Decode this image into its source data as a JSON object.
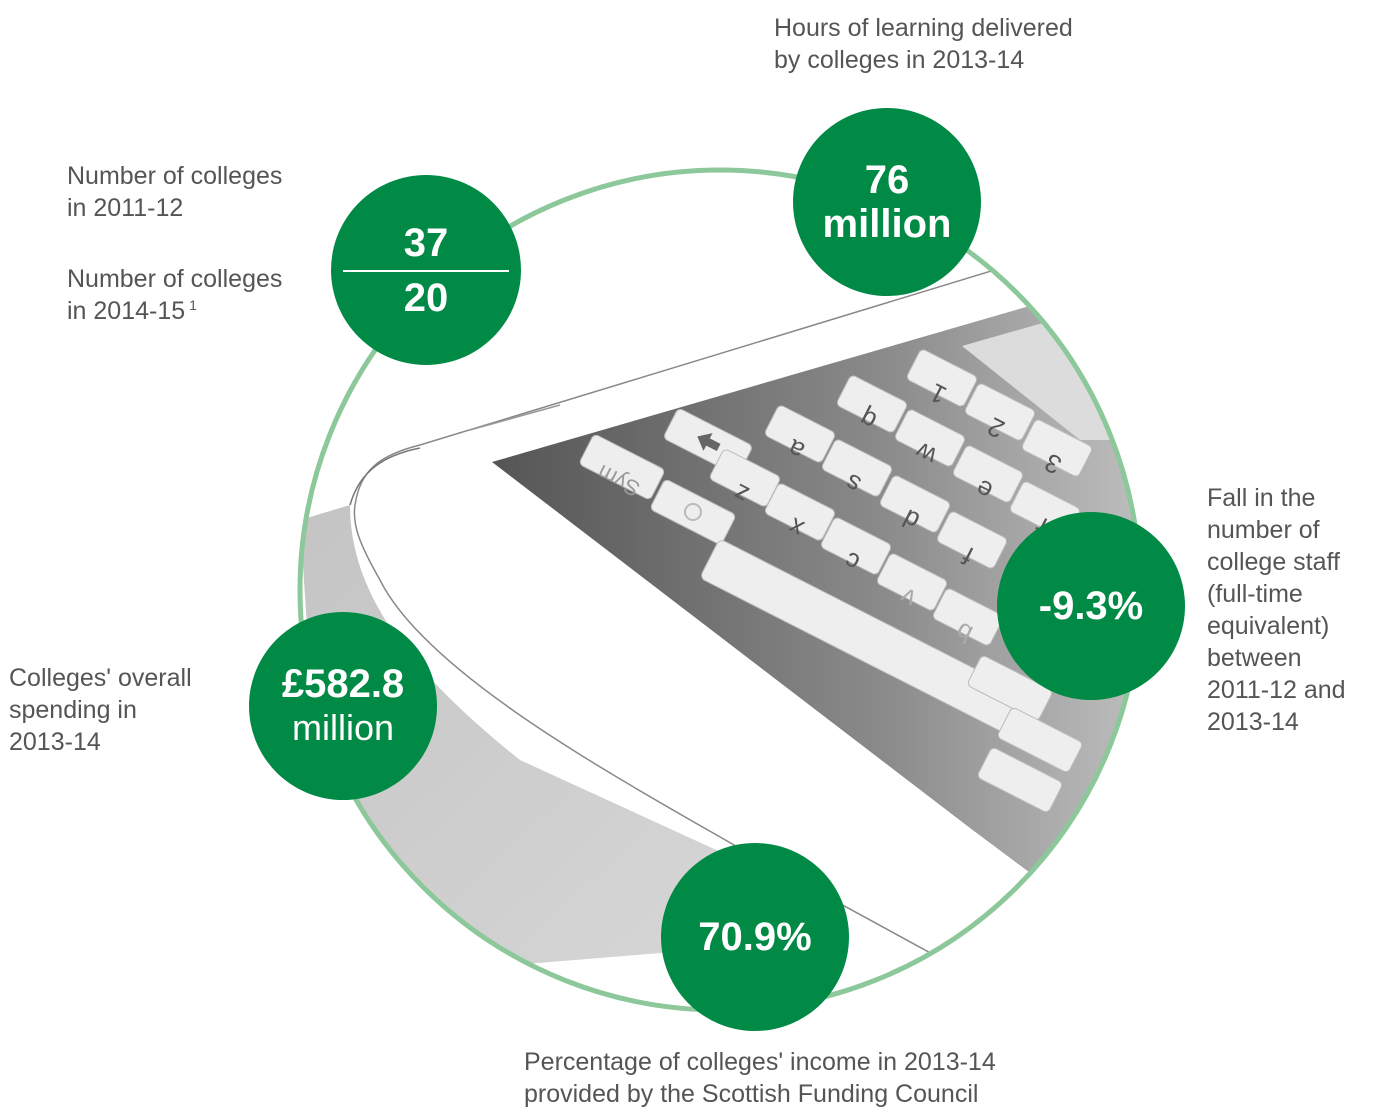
{
  "colors": {
    "accent_green": "#008a45",
    "ring_green": "#8cc89a",
    "text_gray": "#555555"
  },
  "stats": {
    "colleges": {
      "value_top": "37",
      "value_bottom": "20",
      "label_top": [
        "Number of colleges",
        "in 2011-12"
      ],
      "label_bottom": [
        "Number of colleges",
        "in 2014-15"
      ],
      "footnote": "1"
    },
    "hours": {
      "value": [
        "76",
        "million"
      ],
      "label": [
        "Hours of learning delivered",
        "by colleges in 2013-14"
      ]
    },
    "staff": {
      "value": "-9.3%",
      "label": [
        "Fall in the",
        "number of",
        "college staff",
        "(full-time",
        "equivalent)",
        "between",
        "2011-12 and",
        "2013-14"
      ]
    },
    "spending": {
      "value": "£582.8",
      "unit": "million",
      "label": [
        "Colleges' overall",
        "spending in",
        "2013-14"
      ]
    },
    "income": {
      "value": "70.9%",
      "label": [
        "Percentage of colleges' income in 2013-14",
        "provided by the Scottish Funding Council"
      ]
    }
  },
  "keyboard": {
    "keys": [
      "1",
      "2",
      "3",
      "q",
      "w",
      "e",
      "r",
      "a",
      "s",
      "d",
      "f",
      "z",
      "x",
      "c",
      "v",
      "b",
      "Sym"
    ],
    "icons": [
      "shift-arrow-icon",
      "globe-icon"
    ]
  }
}
